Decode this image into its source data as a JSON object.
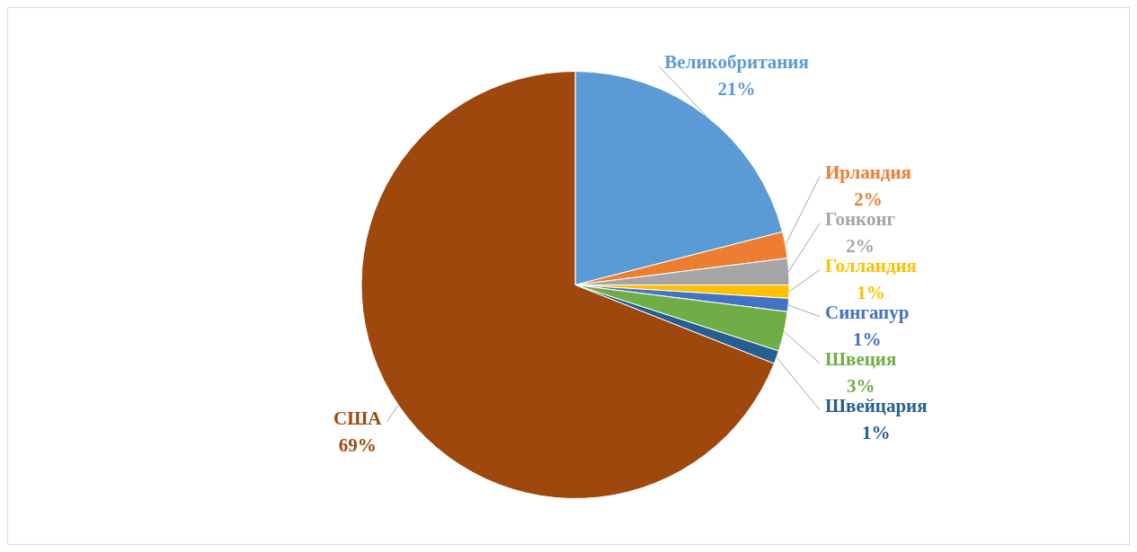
{
  "chart_data": {
    "type": "pie",
    "categories": [
      "Великобритания",
      "Ирландия",
      "Гонконг",
      "Голландия",
      "Сингапур",
      "Швеция",
      "Швейцария",
      "США"
    ],
    "values": [
      21,
      2,
      2,
      1,
      1,
      3,
      1,
      69
    ],
    "value_labels": [
      "21%",
      "2%",
      "2%",
      "1%",
      "1%",
      "3%",
      "1%",
      "69%"
    ],
    "colors": [
      "#5b9bd5",
      "#ed7d31",
      "#a5a5a5",
      "#ffc000",
      "#4472c4",
      "#70ad47",
      "#255e91",
      "#9e480e"
    ],
    "legend": false
  }
}
